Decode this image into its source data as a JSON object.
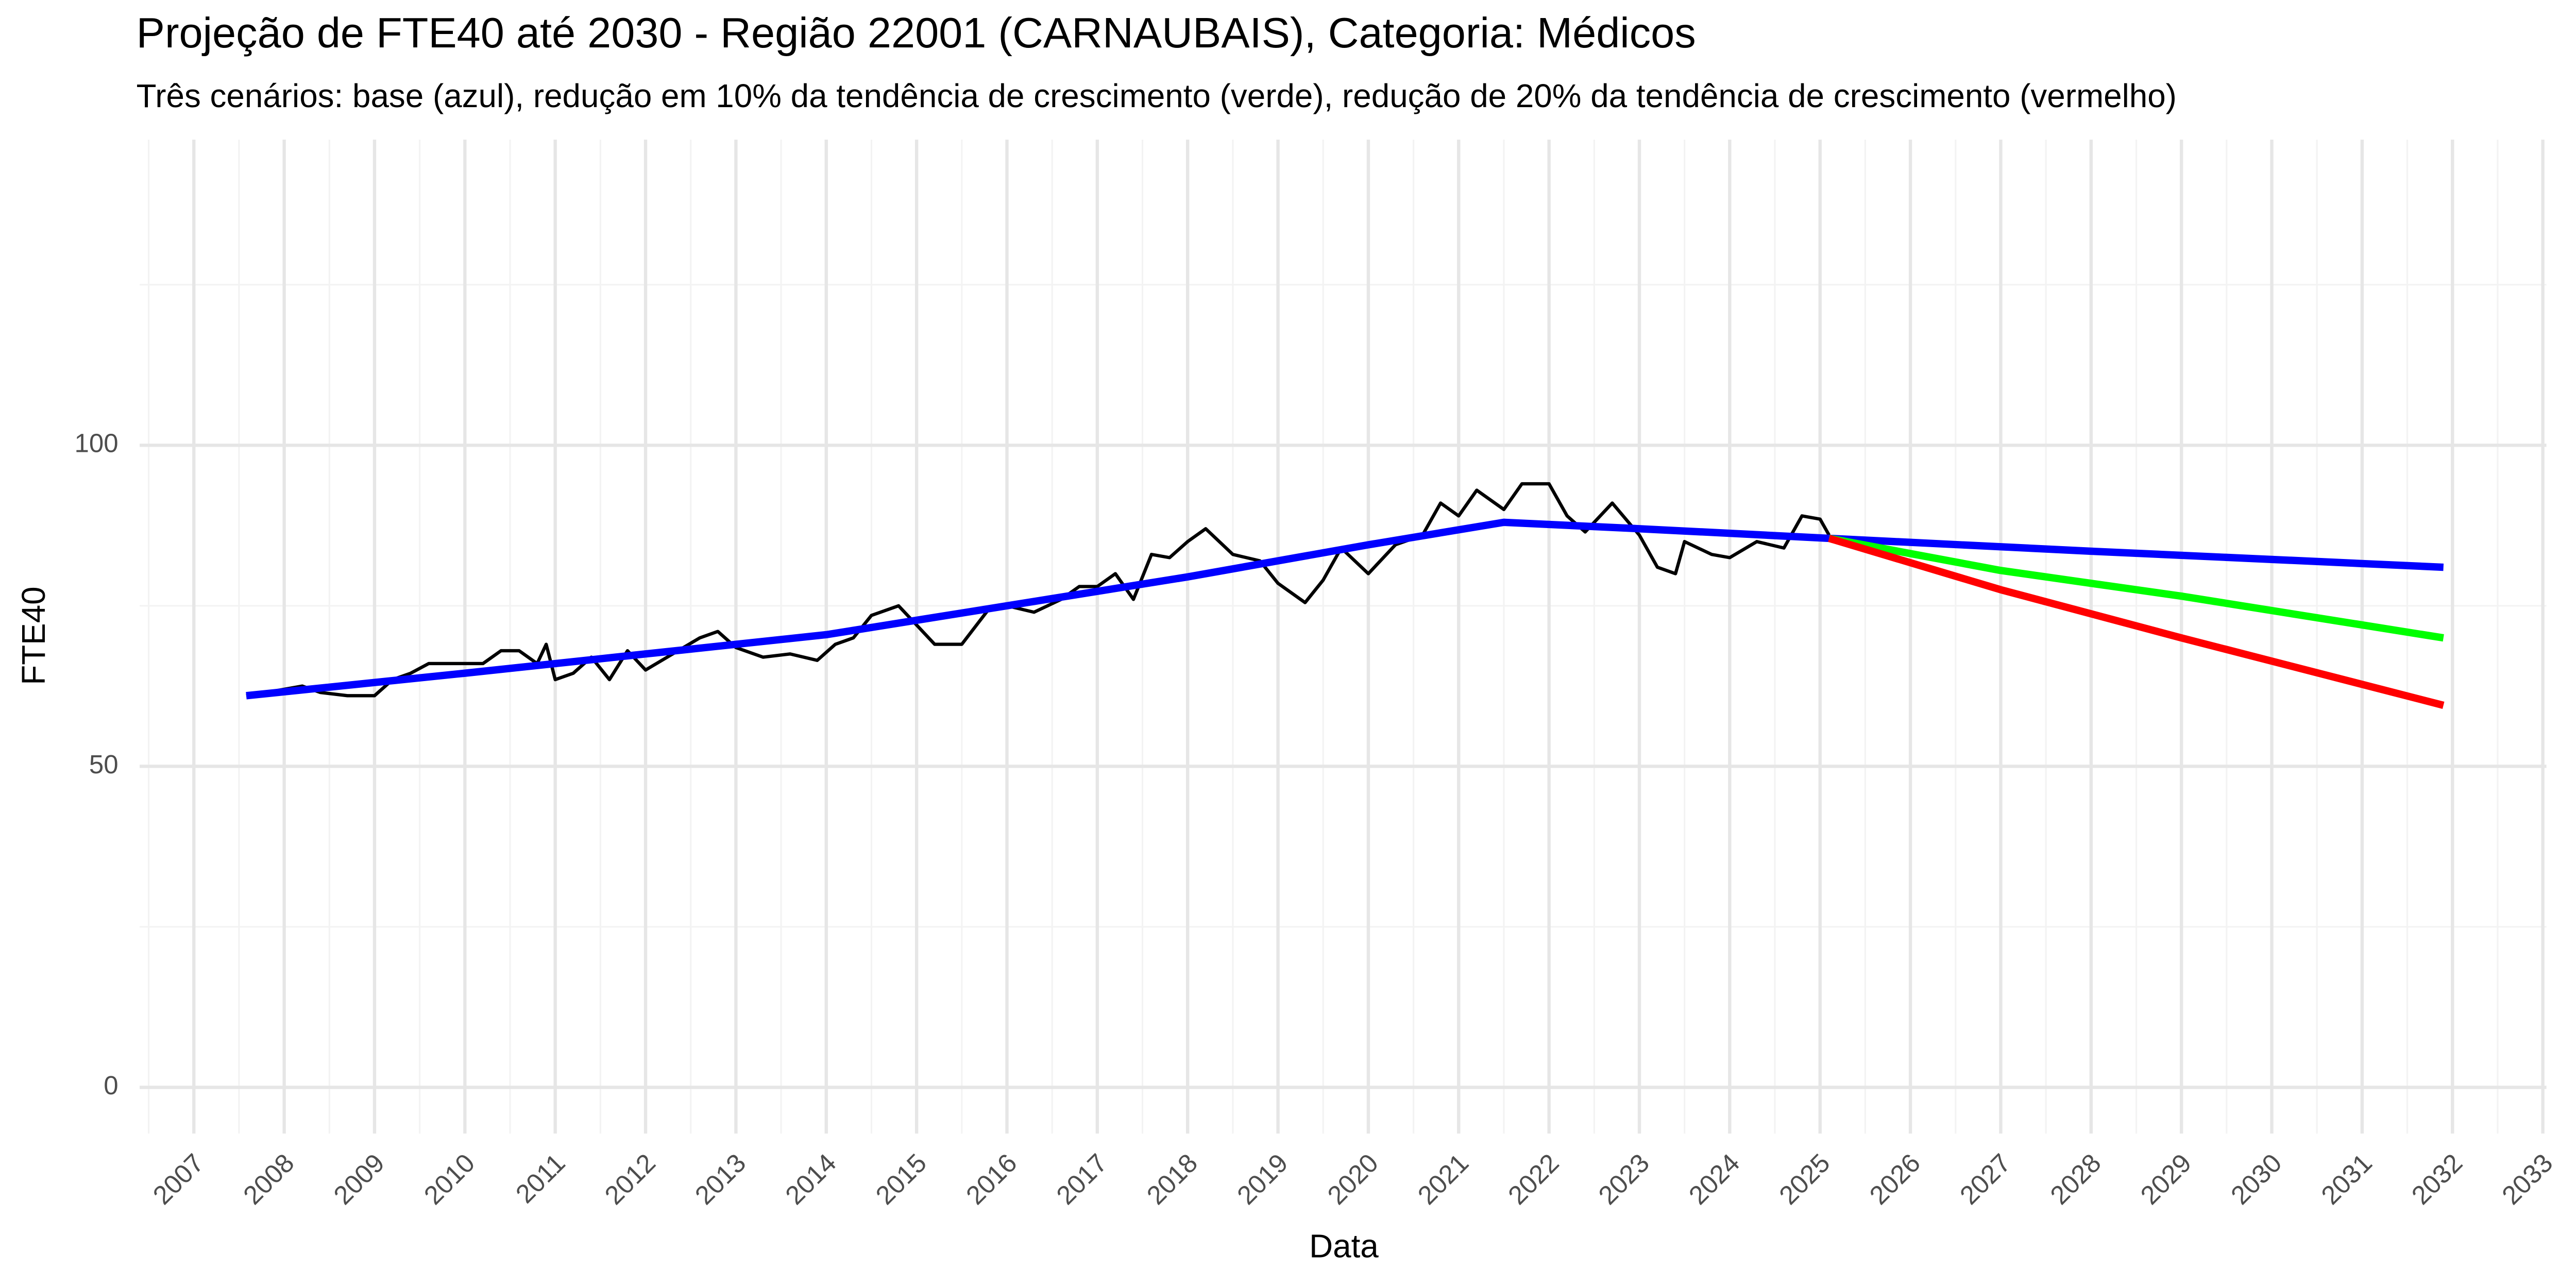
{
  "chart_data": {
    "type": "line",
    "title": "Projeção de FTE40 até 2030 - Região 22001 (CARNAUBAIS), Categoria: Médicos",
    "subtitle": "Três cenários: base (azul), redução em 10% da tendência de crescimento (verde), redução de 20% da tendência de crescimento (vermelho)",
    "x_label": "Data",
    "y_label": "FTE40",
    "xlim": [
      2006.4,
      2033.04
    ],
    "xticks": [
      2007,
      2008,
      2009,
      2010,
      2011,
      2012,
      2013,
      2014,
      2015,
      2016,
      2017,
      2018,
      2019,
      2020,
      2021,
      2022,
      2023,
      2024,
      2025,
      2026,
      2027,
      2028,
      2029,
      2030,
      2031,
      2032,
      2033
    ],
    "ylim": [
      -7.2,
      147.6
    ],
    "yticks": [
      0,
      50,
      100
    ],
    "grid": true,
    "minor_grid": true,
    "series": [
      {
        "color": "#000000",
        "x": [
          2007.58,
          2007.8,
          2008.0,
          2008.2,
          2008.4,
          2008.7,
          2009.0,
          2009.2,
          2009.4,
          2009.6,
          2009.9,
          2010.2,
          2010.4,
          2010.6,
          2010.8,
          2010.9,
          2011.0,
          2011.2,
          2011.4,
          2011.6,
          2011.8,
          2012.0,
          2012.3,
          2012.6,
          2012.8,
          2013.0,
          2013.3,
          2013.6,
          2013.9,
          2014.1,
          2014.3,
          2014.5,
          2014.8,
          2015.0,
          2015.2,
          2015.5,
          2015.8,
          2016.0,
          2016.3,
          2016.6,
          2016.8,
          2017.0,
          2017.2,
          2017.4,
          2017.6,
          2017.8,
          2018.0,
          2018.2,
          2018.5,
          2018.8,
          2019.0,
          2019.3,
          2019.5,
          2019.7,
          2020.0,
          2020.3,
          2020.6,
          2020.8,
          2021.0,
          2021.2,
          2021.5,
          2021.7,
          2022.0,
          2022.2,
          2022.4,
          2022.7,
          2023.0,
          2023.2,
          2023.4,
          2023.5,
          2023.8,
          2024.0,
          2024.3,
          2024.6,
          2024.8,
          2025.0,
          2025.1
        ],
        "values": [
          61,
          61.5,
          62,
          62.5,
          61.5,
          61,
          61,
          63.5,
          64.5,
          66,
          66,
          66,
          68,
          68,
          66,
          69,
          63.5,
          64.5,
          67,
          63.5,
          68,
          65,
          67.5,
          70,
          71,
          68.5,
          67,
          67.5,
          66.5,
          69,
          70,
          73.5,
          75,
          72,
          69,
          69,
          74.5,
          75,
          74,
          76,
          78,
          78,
          80,
          76,
          83,
          82.5,
          85,
          87,
          83,
          82,
          78.5,
          75.5,
          79,
          84,
          80,
          84.5,
          86,
          91,
          89,
          93,
          90,
          94,
          94,
          89,
          86.5,
          91,
          86,
          81,
          80,
          85,
          83,
          82.5,
          85,
          84,
          89,
          88.5,
          86
        ]
      },
      {
        "color": "#0000ff",
        "x": [
          2007.58,
          2010,
          2012,
          2014,
          2016,
          2018,
          2020,
          2021.5,
          2023,
          2025.1,
          2028,
          2031.9
        ],
        "values": [
          61,
          64.5,
          67.5,
          70.5,
          75,
          79.5,
          84.5,
          88,
          87,
          85.5,
          83.5,
          81
        ]
      },
      {
        "color": "#00ff00",
        "x": [
          2025.1,
          2027,
          2029,
          2031.9
        ],
        "values": [
          85.5,
          80.5,
          76.5,
          70
        ]
      },
      {
        "color": "#ff0000",
        "x": [
          2025.1,
          2027,
          2029,
          2031.9
        ],
        "values": [
          85.5,
          77.5,
          70,
          59.5
        ]
      }
    ]
  }
}
